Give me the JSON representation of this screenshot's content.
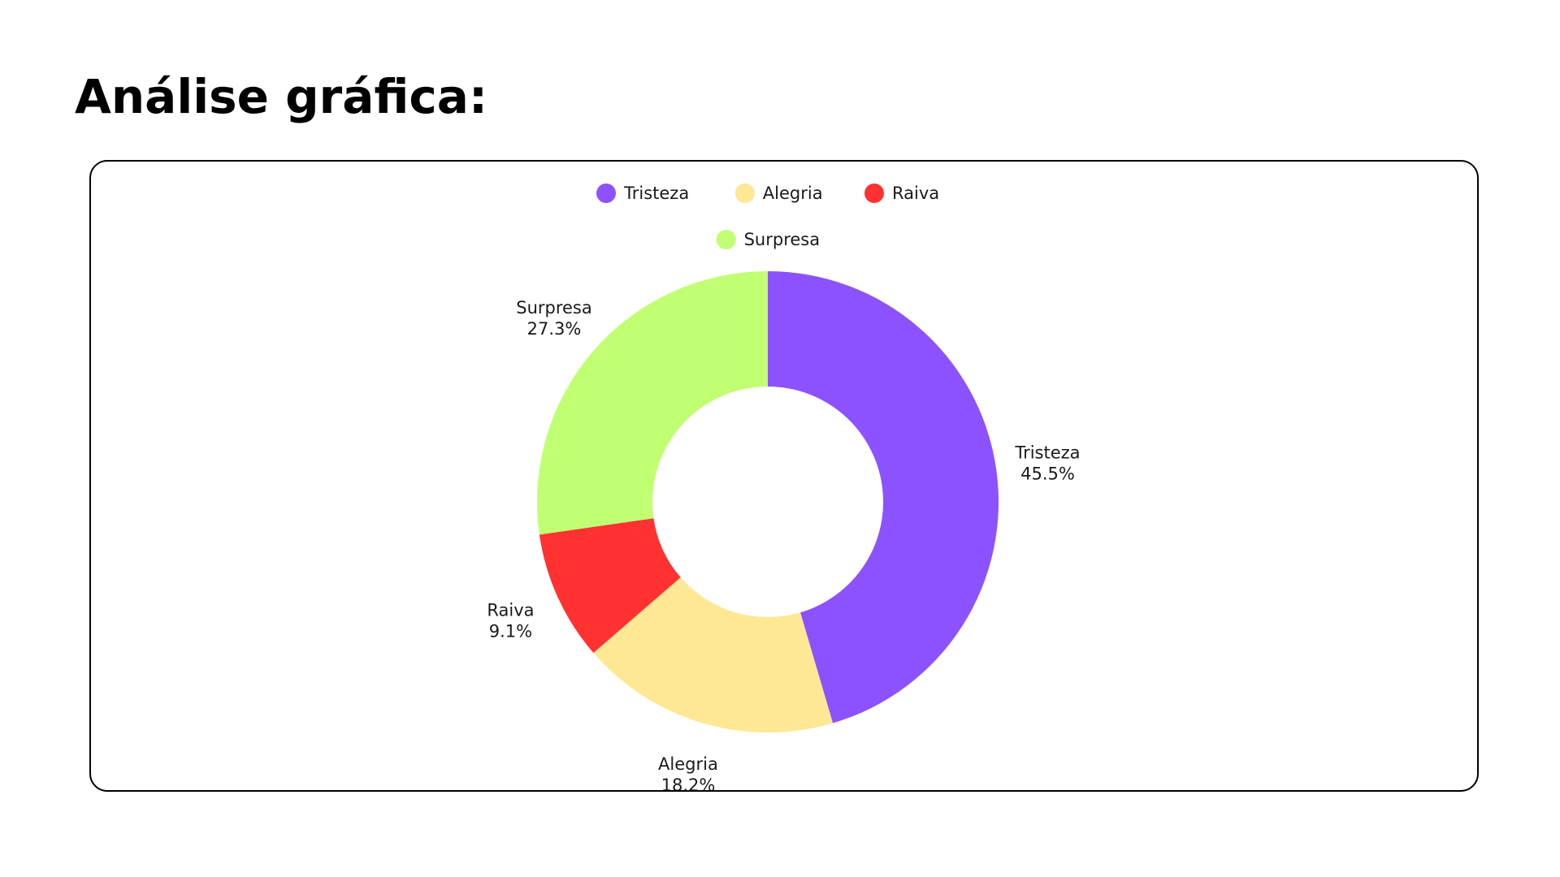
{
  "title": "Análise gráfica:",
  "chart_data": {
    "type": "pie",
    "style": "donut",
    "title": "",
    "legend_position": "top",
    "series": [
      {
        "name": "Tristeza",
        "value": 45.5,
        "label": "45.5%",
        "color": "#8c52ff"
      },
      {
        "name": "Alegria",
        "value": 18.2,
        "label": "18.2%",
        "color": "#ffe893"
      },
      {
        "name": "Raiva",
        "value": 9.1,
        "label": "9.1%",
        "color": "#ff3131"
      },
      {
        "name": "Surpresa",
        "value": 27.3,
        "label": "27.3%",
        "color": "#c1ff72"
      }
    ]
  }
}
